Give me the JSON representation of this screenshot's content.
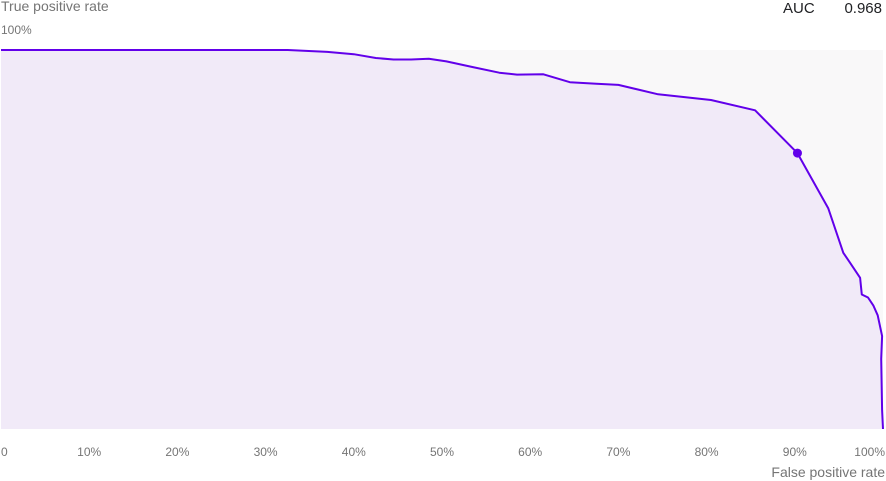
{
  "auc": {
    "label": "AUC",
    "value": "0.968"
  },
  "colors": {
    "line": "#6200ea",
    "fill": "#f1eaf8",
    "plot_background": "#f9f8f9",
    "text": "#757575"
  },
  "chart_data": {
    "type": "area",
    "title": "",
    "xlabel": "False positive rate",
    "ylabel": "True positive rate",
    "xlim": [
      0,
      100
    ],
    "ylim": [
      0,
      100
    ],
    "grid": false,
    "x_ticks": [
      {
        "value": 0,
        "label": "0"
      },
      {
        "value": 10,
        "label": "10%"
      },
      {
        "value": 20,
        "label": "20%"
      },
      {
        "value": 30,
        "label": "30%"
      },
      {
        "value": 40,
        "label": "40%"
      },
      {
        "value": 50,
        "label": "50%"
      },
      {
        "value": 60,
        "label": "60%"
      },
      {
        "value": 70,
        "label": "70%"
      },
      {
        "value": 80,
        "label": "80%"
      },
      {
        "value": 90,
        "label": "90%"
      },
      {
        "value": 100,
        "label": "100%"
      }
    ],
    "y_ticks": [
      {
        "value": 100,
        "label": "100%"
      }
    ],
    "series": [
      {
        "points": [
          {
            "x": 0,
            "y": 100
          },
          {
            "x": 32.5,
            "y": 100
          },
          {
            "x": 37,
            "y": 99.5
          },
          {
            "x": 40,
            "y": 98.9
          },
          {
            "x": 42.5,
            "y": 97.9
          },
          {
            "x": 44.5,
            "y": 97.5
          },
          {
            "x": 46.5,
            "y": 97.5
          },
          {
            "x": 48.5,
            "y": 97.7
          },
          {
            "x": 50.5,
            "y": 97
          },
          {
            "x": 53.5,
            "y": 95.5
          },
          {
            "x": 56.5,
            "y": 94
          },
          {
            "x": 58.5,
            "y": 93.5
          },
          {
            "x": 61.5,
            "y": 93.6
          },
          {
            "x": 64.5,
            "y": 91.5
          },
          {
            "x": 67.5,
            "y": 91.1
          },
          {
            "x": 70,
            "y": 90.8
          },
          {
            "x": 74.5,
            "y": 88.3
          },
          {
            "x": 80.5,
            "y": 86.8
          },
          {
            "x": 85.5,
            "y": 84.1
          },
          {
            "x": 90.3,
            "y": 72.8
          },
          {
            "x": 93.8,
            "y": 58.2
          },
          {
            "x": 95.5,
            "y": 46.5
          },
          {
            "x": 96.2,
            "y": 44.1
          },
          {
            "x": 97.4,
            "y": 39.9
          },
          {
            "x": 97.6,
            "y": 35.5
          },
          {
            "x": 98.3,
            "y": 34.7
          },
          {
            "x": 98.9,
            "y": 32.6
          },
          {
            "x": 99.4,
            "y": 30
          },
          {
            "x": 99.9,
            "y": 24.5
          },
          {
            "x": 99.8,
            "y": 18.5
          },
          {
            "x": 99.9,
            "y": 5
          },
          {
            "x": 100,
            "y": 0
          }
        ]
      }
    ],
    "highlight_point": {
      "x": 90.3,
      "y": 72.8
    }
  }
}
